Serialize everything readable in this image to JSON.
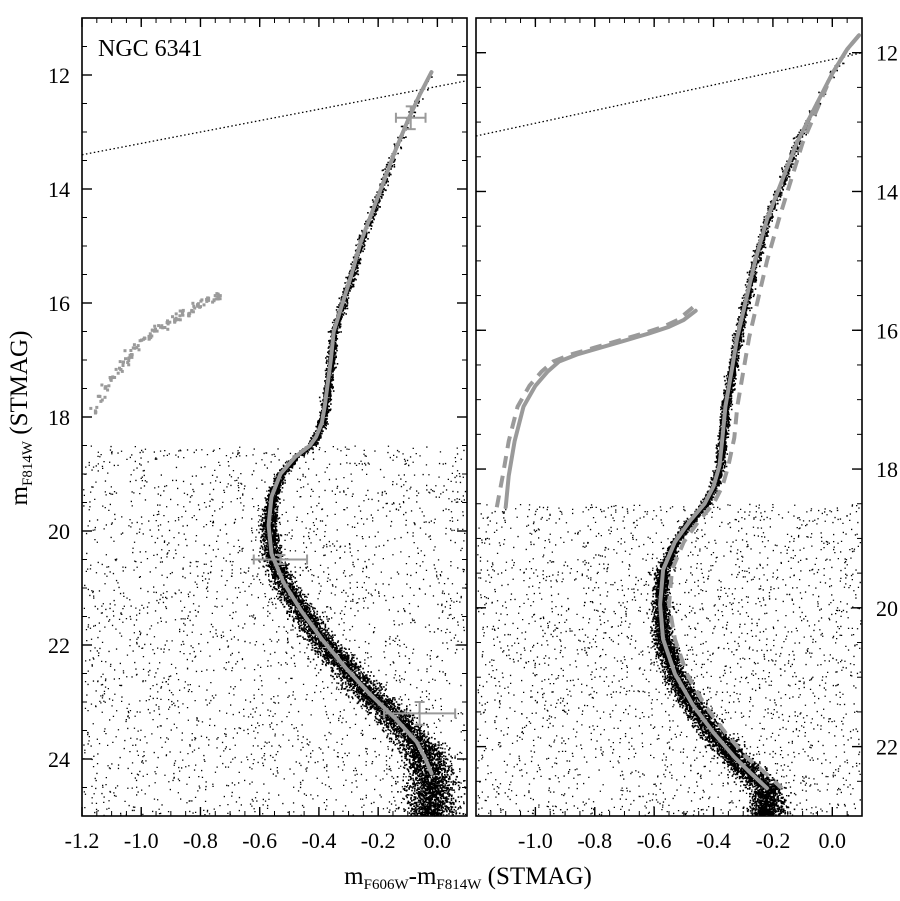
{
  "figure": {
    "left_panel_label": "NGC 6341",
    "xlabel_main": "m",
    "xlabel_sub1": "F606W",
    "xlabel_dash": "-m",
    "xlabel_sub2": "F814W",
    "xlabel_unit": " (STMAG)",
    "ylabel_main": "m",
    "ylabel_sub": "F814W",
    "ylabel_unit": " (STMAG)"
  },
  "colors": {
    "stars": "#000000",
    "fiducial": "#9a9a9a",
    "reference_line": "#000000",
    "background": "#ffffff"
  },
  "chart_data": [
    {
      "type": "scatter",
      "panel": "left",
      "title": "NGC 6341",
      "xlabel": "mF606W-mF814W (STMAG)",
      "ylabel": "mF814W (STMAG)",
      "xlim": [
        -1.2,
        0.1
      ],
      "ylim": [
        25.0,
        11.0
      ],
      "y_inverted": true,
      "xticks": [
        -1.2,
        -1.0,
        -0.8,
        -0.6,
        -0.4,
        -0.2,
        0.0
      ],
      "xtick_labels": [
        "-1.2",
        "-1.0",
        "-0.8",
        "-0.6",
        "-0.4",
        "-0.2",
        "0.0"
      ],
      "yticks": [
        12,
        14,
        16,
        18,
        20,
        22,
        24
      ],
      "ytick_labels": [
        "12",
        "14",
        "16",
        "18",
        "20",
        "22",
        "24"
      ],
      "series": [
        {
          "kind": "fiducial_line",
          "style": "solid",
          "color": "#9a9a9a",
          "x": [
            -0.02,
            -0.06,
            -0.1,
            -0.14,
            -0.18,
            -0.22,
            -0.26,
            -0.29,
            -0.32,
            -0.35,
            -0.36,
            -0.37,
            -0.38,
            -0.39,
            -0.41,
            -0.43,
            -0.48,
            -0.53,
            -0.56,
            -0.57,
            -0.56,
            -0.52,
            -0.46,
            -0.39,
            -0.31,
            -0.23,
            -0.14,
            -0.07,
            -0.04,
            -0.02
          ],
          "y": [
            11.95,
            12.35,
            12.8,
            13.3,
            13.85,
            14.4,
            14.95,
            15.5,
            16.0,
            16.5,
            17.0,
            17.4,
            17.8,
            18.1,
            18.35,
            18.5,
            18.7,
            19.0,
            19.4,
            19.9,
            20.4,
            20.9,
            21.4,
            21.9,
            22.4,
            22.85,
            23.3,
            23.7,
            24.0,
            24.25
          ]
        },
        {
          "kind": "horizontal_branch_points",
          "color": "#9a9a9a",
          "x": [
            -1.16,
            -1.14,
            -1.12,
            -1.1,
            -1.08,
            -1.06,
            -1.05,
            -1.04,
            -1.02,
            -1.0,
            -0.98,
            -0.96,
            -0.94,
            -0.92,
            -0.9,
            -0.88,
            -0.86,
            -0.84,
            -0.82,
            -0.8,
            -0.78,
            -0.76,
            -0.74
          ],
          "y": [
            17.85,
            17.65,
            17.45,
            17.3,
            17.15,
            17.05,
            16.95,
            16.85,
            16.75,
            16.65,
            16.55,
            16.45,
            16.4,
            16.35,
            16.3,
            16.25,
            16.2,
            16.15,
            16.05,
            16.0,
            15.95,
            15.9,
            15.85
          ]
        },
        {
          "kind": "error_bars",
          "color": "#9a9a9a",
          "points": [
            {
              "x": -0.09,
              "y": 12.75,
              "xerr": 0.05,
              "yerr": 0.2
            },
            {
              "x": -0.53,
              "y": 20.5,
              "xerr": 0.09,
              "yerr": 0.08
            },
            {
              "x": -0.06,
              "y": 23.2,
              "xerr": 0.12,
              "yerr": 0.2
            }
          ]
        },
        {
          "kind": "reference_line",
          "style": "dotted",
          "color": "#000000",
          "x": [
            -1.2,
            0.05,
            0.1
          ],
          "y": [
            13.4,
            12.15,
            12.1
          ]
        }
      ]
    },
    {
      "type": "scatter",
      "panel": "right",
      "xlabel": "mF606W-mF814W (STMAG)",
      "ylabel": "mF814W (STMAG)",
      "xlim": [
        -1.2,
        0.1
      ],
      "ylim": [
        23.0,
        11.5
      ],
      "y_inverted": true,
      "xticks": [
        -1.0,
        -0.8,
        -0.6,
        -0.4,
        -0.2,
        0.0
      ],
      "xtick_labels": [
        "-1.0",
        "-0.8",
        "-0.6",
        "-0.4",
        "-0.2",
        "0.0"
      ],
      "yticks": [
        12,
        14,
        16,
        18,
        20,
        22
      ],
      "ytick_labels": [
        "12",
        "14",
        "16",
        "18",
        "20",
        "22"
      ],
      "series": [
        {
          "kind": "fiducial_line",
          "style": "solid",
          "color": "#9a9a9a",
          "x": [
            0.09,
            0.05,
            0.0,
            -0.06,
            -0.12,
            -0.17,
            -0.22,
            -0.26,
            -0.29,
            -0.32,
            -0.34,
            -0.36,
            -0.37,
            -0.38,
            -0.4,
            -0.43,
            -0.48,
            -0.53,
            -0.57,
            -0.58,
            -0.57,
            -0.53,
            -0.47,
            -0.4,
            -0.33,
            -0.27,
            -0.22
          ],
          "y": [
            11.75,
            11.95,
            12.3,
            12.8,
            13.3,
            13.85,
            14.4,
            15.0,
            15.55,
            16.1,
            16.6,
            17.1,
            17.55,
            17.95,
            18.25,
            18.5,
            18.75,
            19.05,
            19.45,
            19.95,
            20.45,
            20.95,
            21.4,
            21.8,
            22.15,
            22.4,
            22.6
          ]
        },
        {
          "kind": "fiducial_line",
          "style": "dashed",
          "color": "#9a9a9a",
          "x": [
            0.09,
            0.05,
            0.0,
            -0.05,
            -0.1,
            -0.14,
            -0.18,
            -0.22,
            -0.25,
            -0.28,
            -0.3,
            -0.32,
            -0.33,
            -0.35,
            -0.37,
            -0.4,
            -0.45,
            -0.5,
            -0.54,
            -0.55,
            -0.53,
            -0.49,
            -0.43,
            -0.36,
            -0.29,
            -0.22,
            -0.17
          ],
          "y": [
            11.75,
            11.95,
            12.3,
            12.8,
            13.3,
            13.85,
            14.4,
            15.0,
            15.55,
            16.1,
            16.6,
            17.1,
            17.55,
            17.95,
            18.25,
            18.5,
            18.75,
            19.05,
            19.45,
            19.95,
            20.45,
            20.95,
            21.4,
            21.8,
            22.15,
            22.4,
            22.6
          ]
        },
        {
          "kind": "horizontal_branch_line",
          "style": "solid",
          "color": "#9a9a9a",
          "x": [
            -1.1,
            -1.09,
            -1.07,
            -1.04,
            -1.0,
            -0.96,
            -0.92,
            -0.86,
            -0.78,
            -0.7,
            -0.62,
            -0.55,
            -0.5,
            -0.46
          ],
          "y": [
            18.55,
            18.1,
            17.6,
            17.1,
            16.8,
            16.6,
            16.45,
            16.35,
            16.25,
            16.15,
            16.05,
            15.95,
            15.85,
            15.72
          ]
        },
        {
          "kind": "horizontal_branch_line",
          "style": "dashed",
          "color": "#9a9a9a",
          "x": [
            -1.13,
            -1.11,
            -1.09,
            -1.06,
            -1.02,
            -0.98,
            -0.94,
            -0.88,
            -0.8,
            -0.72,
            -0.64,
            -0.57,
            -0.52,
            -0.45
          ],
          "y": [
            18.55,
            18.1,
            17.6,
            17.1,
            16.8,
            16.6,
            16.45,
            16.35,
            16.25,
            16.15,
            16.05,
            15.95,
            15.85,
            15.6
          ]
        },
        {
          "kind": "reference_line",
          "style": "dotted",
          "color": "#000000",
          "x": [
            -1.2,
            0.05,
            0.1
          ],
          "y": [
            13.2,
            12.05,
            12.0
          ]
        }
      ]
    }
  ]
}
